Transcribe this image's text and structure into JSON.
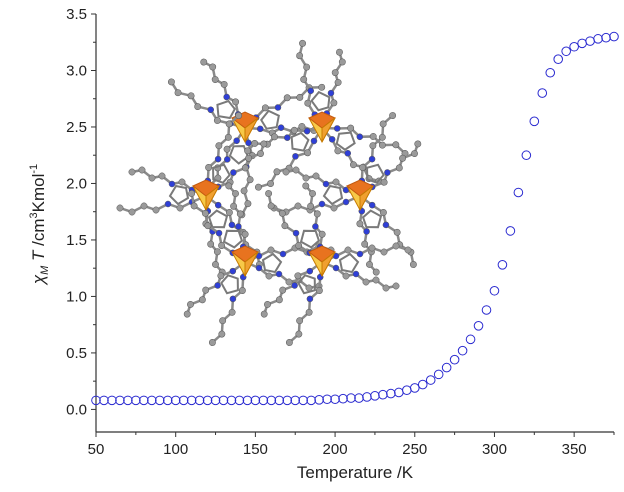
{
  "chart_data": {
    "type": "scatter",
    "title": "",
    "xlabel": "Temperature /K",
    "ylabel_parts": {
      "chi": "χ",
      "sub": "M",
      "t": " T",
      "rest1": " /cm",
      "sup1": "3",
      "rest2": "Kmol",
      "sup2": "-1"
    },
    "xlim": [
      50,
      375
    ],
    "ylim": [
      -0.2,
      3.5
    ],
    "xticks": [
      {
        "value": 50,
        "label": "50"
      },
      {
        "value": 100,
        "label": "100"
      },
      {
        "value": 150,
        "label": "150"
      },
      {
        "value": 200,
        "label": "200"
      },
      {
        "value": 250,
        "label": "250"
      },
      {
        "value": 300,
        "label": "300"
      },
      {
        "value": 350,
        "label": "350"
      }
    ],
    "yticks": [
      {
        "value": 0.0,
        "label": "0.0"
      },
      {
        "value": 0.5,
        "label": "0.5"
      },
      {
        "value": 1.0,
        "label": "1.0"
      },
      {
        "value": 1.5,
        "label": "1.5"
      },
      {
        "value": 2.0,
        "label": "2.0"
      },
      {
        "value": 2.5,
        "label": "2.5"
      },
      {
        "value": 3.0,
        "label": "3.0"
      },
      {
        "value": 3.5,
        "label": "3.5"
      }
    ],
    "grid": false,
    "marker": "open-circle",
    "color": "#2b2bd0",
    "series": [
      {
        "points": [
          [
            50,
            0.08
          ],
          [
            55,
            0.08
          ],
          [
            60,
            0.08
          ],
          [
            65,
            0.08
          ],
          [
            70,
            0.08
          ],
          [
            75,
            0.08
          ],
          [
            80,
            0.08
          ],
          [
            85,
            0.08
          ],
          [
            90,
            0.08
          ],
          [
            95,
            0.08
          ],
          [
            100,
            0.08
          ],
          [
            105,
            0.08
          ],
          [
            110,
            0.08
          ],
          [
            115,
            0.08
          ],
          [
            120,
            0.08
          ],
          [
            125,
            0.08
          ],
          [
            130,
            0.08
          ],
          [
            135,
            0.08
          ],
          [
            140,
            0.08
          ],
          [
            145,
            0.08
          ],
          [
            150,
            0.08
          ],
          [
            155,
            0.08
          ],
          [
            160,
            0.08
          ],
          [
            165,
            0.08
          ],
          [
            170,
            0.08
          ],
          [
            175,
            0.08
          ],
          [
            180,
            0.08
          ],
          [
            185,
            0.08
          ],
          [
            190,
            0.085
          ],
          [
            195,
            0.09
          ],
          [
            200,
            0.09
          ],
          [
            205,
            0.095
          ],
          [
            210,
            0.1
          ],
          [
            215,
            0.1
          ],
          [
            220,
            0.11
          ],
          [
            225,
            0.12
          ],
          [
            230,
            0.13
          ],
          [
            235,
            0.14
          ],
          [
            240,
            0.15
          ],
          [
            245,
            0.17
          ],
          [
            250,
            0.19
          ],
          [
            255,
            0.22
          ],
          [
            260,
            0.26
          ],
          [
            265,
            0.31
          ],
          [
            270,
            0.37
          ],
          [
            275,
            0.44
          ],
          [
            280,
            0.52
          ],
          [
            285,
            0.62
          ],
          [
            290,
            0.74
          ],
          [
            295,
            0.88
          ],
          [
            300,
            1.05
          ],
          [
            305,
            1.28
          ],
          [
            310,
            1.58
          ],
          [
            315,
            1.92
          ],
          [
            320,
            2.25
          ],
          [
            325,
            2.55
          ],
          [
            330,
            2.8
          ],
          [
            335,
            2.98
          ],
          [
            340,
            3.1
          ],
          [
            345,
            3.17
          ],
          [
            350,
            3.21
          ],
          [
            355,
            3.24
          ],
          [
            360,
            3.26
          ],
          [
            365,
            3.28
          ],
          [
            370,
            3.29
          ],
          [
            375,
            3.3
          ]
        ]
      }
    ]
  }
}
